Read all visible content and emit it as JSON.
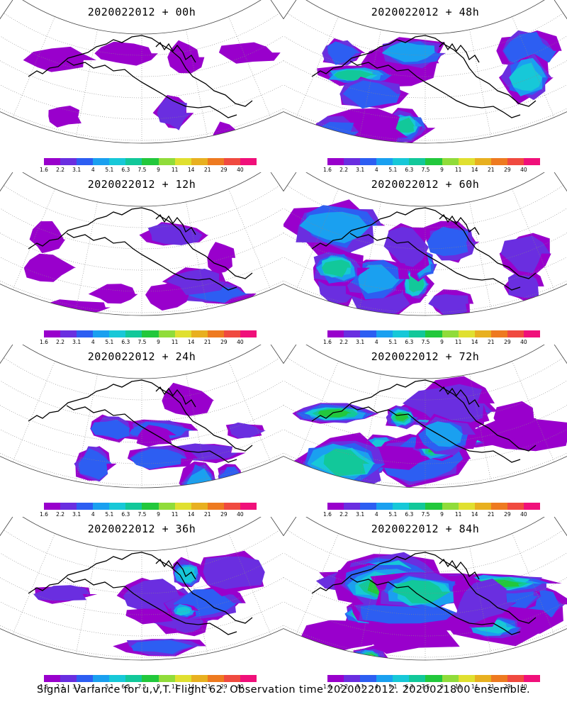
{
  "panels": [
    {
      "title": "2020022012  +  00h",
      "intensity": 0.15
    },
    {
      "title": "2020022012  +  48h",
      "intensity": 0.6
    },
    {
      "title": "2020022012  +  12h",
      "intensity": 0.3
    },
    {
      "title": "2020022012  +  60h",
      "intensity": 0.7
    },
    {
      "title": "2020022012  +  24h",
      "intensity": 0.4
    },
    {
      "title": "2020022012  +  72h",
      "intensity": 0.85
    },
    {
      "title": "2020022012  +  36h",
      "intensity": 0.5
    },
    {
      "title": "2020022012  +  84h",
      "intensity": 1.0
    }
  ],
  "colorbar": {
    "labels": [
      "1.6",
      "2.2",
      "3.1",
      "4",
      "5.1",
      "6.3",
      "7.5",
      "9",
      "11",
      "14",
      "21",
      "29",
      "40"
    ],
    "colors": [
      "#9900cc",
      "#6a2ee0",
      "#2d5ef2",
      "#1aa0f0",
      "#17c8d8",
      "#12c89a",
      "#22c83c",
      "#90dc3a",
      "#e0e030",
      "#e8b020",
      "#ee7a20",
      "#f04a40",
      "#f0107a"
    ]
  },
  "footer": "Signal Variance for u,v,T. Flight 62. Observation time 2020022012. 2020021800 ensemble."
}
